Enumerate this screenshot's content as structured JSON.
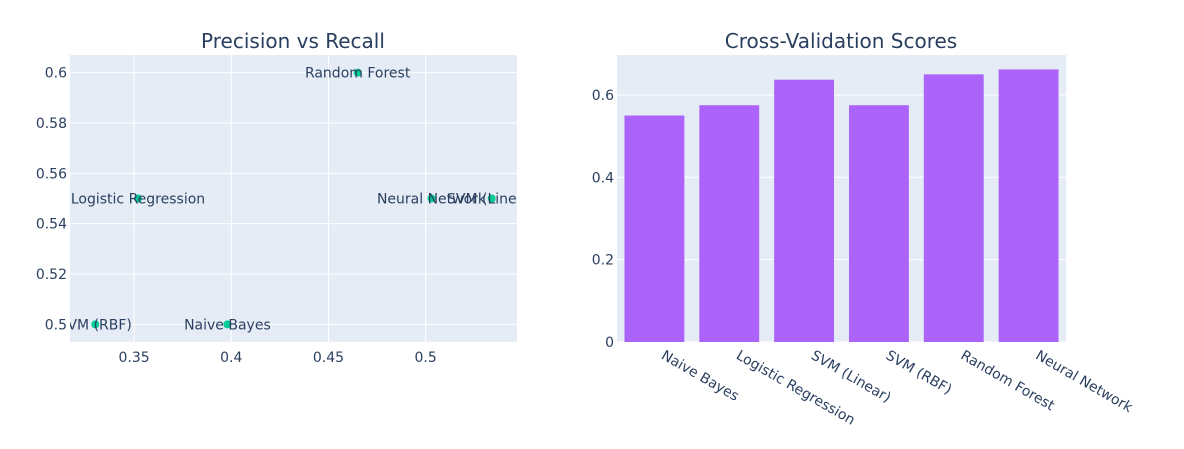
{
  "chart_data": [
    {
      "type": "scatter",
      "title": "Precision vs Recall",
      "xlabel": "",
      "ylabel": "",
      "xlim": [
        0.317,
        0.547
      ],
      "ylim": [
        0.493,
        0.607
      ],
      "xticks": [
        0.35,
        0.4,
        0.45,
        0.5
      ],
      "xtick_labels": [
        "0.35",
        "0.4",
        "0.45",
        "0.5"
      ],
      "yticks": [
        0.5,
        0.52,
        0.54,
        0.56,
        0.58,
        0.6
      ],
      "ytick_labels": [
        "0.5",
        "0.52",
        "0.54",
        "0.56",
        "0.58",
        "0.6"
      ],
      "grid": true,
      "marker_color": "#00cc96",
      "points": [
        {
          "label": "Naive Bayes",
          "x": 0.398,
          "y": 0.5
        },
        {
          "label": "Logistic Regression",
          "x": 0.352,
          "y": 0.55
        },
        {
          "label": "SVM (Linear)",
          "x": 0.534,
          "y": 0.55
        },
        {
          "label": "SVM (RBF)",
          "x": 0.33,
          "y": 0.5
        },
        {
          "label": "Random Forest",
          "x": 0.465,
          "y": 0.6
        },
        {
          "label": "Neural Network",
          "x": 0.503,
          "y": 0.55
        }
      ]
    },
    {
      "type": "bar",
      "title": "Cross-Validation Scores",
      "xlabel": "",
      "ylabel": "",
      "categories": [
        "Naive Bayes",
        "Logistic Regression",
        "SVM (Linear)",
        "SVM (RBF)",
        "Random Forest",
        "Neural Network"
      ],
      "values": [
        0.55,
        0.575,
        0.637,
        0.575,
        0.65,
        0.662
      ],
      "ylim": [
        0,
        0.697
      ],
      "yticks": [
        0,
        0.2,
        0.4,
        0.6
      ],
      "ytick_labels": [
        "0",
        "0.2",
        "0.4",
        "0.6"
      ],
      "grid": true,
      "bar_color": "#ab63fa"
    }
  ],
  "colors": {
    "plot_bg": "#e5ecf6",
    "grid": "#ffffff",
    "text": "#2a3f5f"
  }
}
